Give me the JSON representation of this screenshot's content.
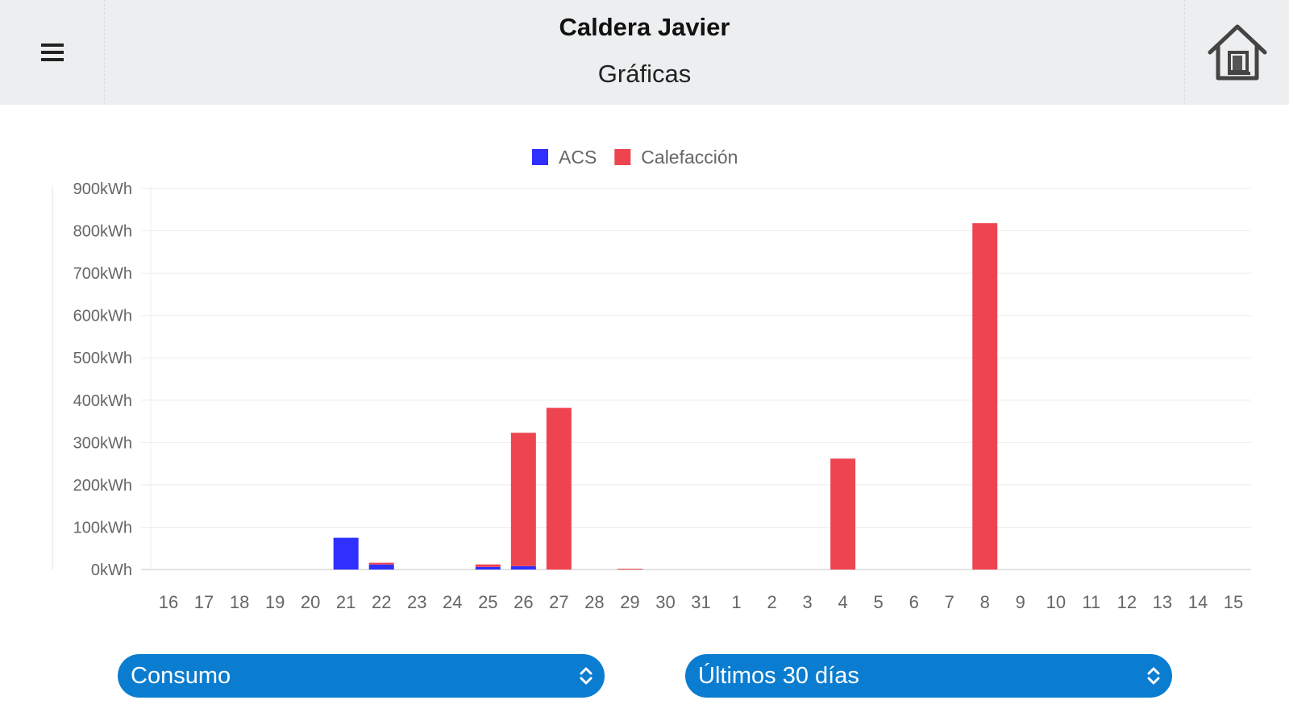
{
  "header": {
    "title": "Caldera Javier",
    "subtitle": "Gráficas",
    "menu_icon": "hamburger-menu-icon",
    "home_icon": "home-icon"
  },
  "chart_data": {
    "type": "bar",
    "categories": [
      "16",
      "17",
      "18",
      "19",
      "20",
      "21",
      "22",
      "23",
      "24",
      "25",
      "26",
      "27",
      "28",
      "29",
      "30",
      "31",
      "1",
      "2",
      "3",
      "4",
      "5",
      "6",
      "7",
      "8",
      "9",
      "10",
      "11",
      "12",
      "13",
      "14",
      "15"
    ],
    "series": [
      {
        "name": "ACS",
        "color": "#2f2fff",
        "values": [
          0,
          0,
          0,
          0,
          0,
          75,
          12,
          0,
          0,
          6,
          8,
          0,
          0,
          0,
          0,
          0,
          0,
          0,
          0,
          0,
          0,
          0,
          0,
          0,
          0,
          0,
          0,
          0,
          0,
          0,
          0
        ]
      },
      {
        "name": "Calefacción",
        "color": "#ee4450",
        "values": [
          0,
          0,
          0,
          0,
          0,
          0,
          4,
          0,
          0,
          6,
          315,
          382,
          0,
          2,
          0,
          0,
          0,
          0,
          0,
          262,
          0,
          0,
          0,
          818,
          0,
          0,
          0,
          0,
          0,
          0,
          0
        ]
      }
    ],
    "y_ticks": [
      "0kWh",
      "100kWh",
      "200kWh",
      "300kWh",
      "400kWh",
      "500kWh",
      "600kWh",
      "700kWh",
      "800kWh",
      "900kWh"
    ],
    "ylim": [
      0,
      900
    ],
    "y_unit": "kWh",
    "grid": true,
    "legend_position": "top-center"
  },
  "controls": {
    "metric_select": {
      "value": "Consumo",
      "icon": "select-chevron-icon"
    },
    "period_select": {
      "value": "Últimos 30 días",
      "icon": "select-chevron-icon"
    }
  },
  "colors": {
    "header_bg": "#eceeef",
    "select_bg": "#0b7dd0",
    "acs": "#2f2fff",
    "calefaccion": "#ee4450"
  }
}
